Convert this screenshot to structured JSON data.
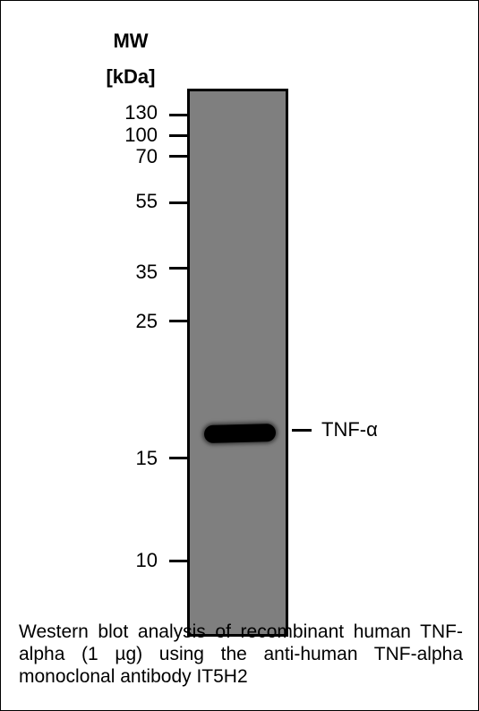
{
  "figure": {
    "mw_header_line1": "MW",
    "mw_header_line2": "[kDa]",
    "markers": [
      "130",
      "100",
      "70",
      "55",
      "35",
      "25",
      "15",
      "10"
    ],
    "band_label": "TNF-α",
    "caption": "Western blot analysis of recombinant human TNF-alpha (1 µg) using the anti-human TNF-alpha monoclonal antibody IT5H2",
    "colors": {
      "lane": "#7f7f7f",
      "band": "#000000",
      "text": "#000000",
      "border": "#000000"
    }
  }
}
